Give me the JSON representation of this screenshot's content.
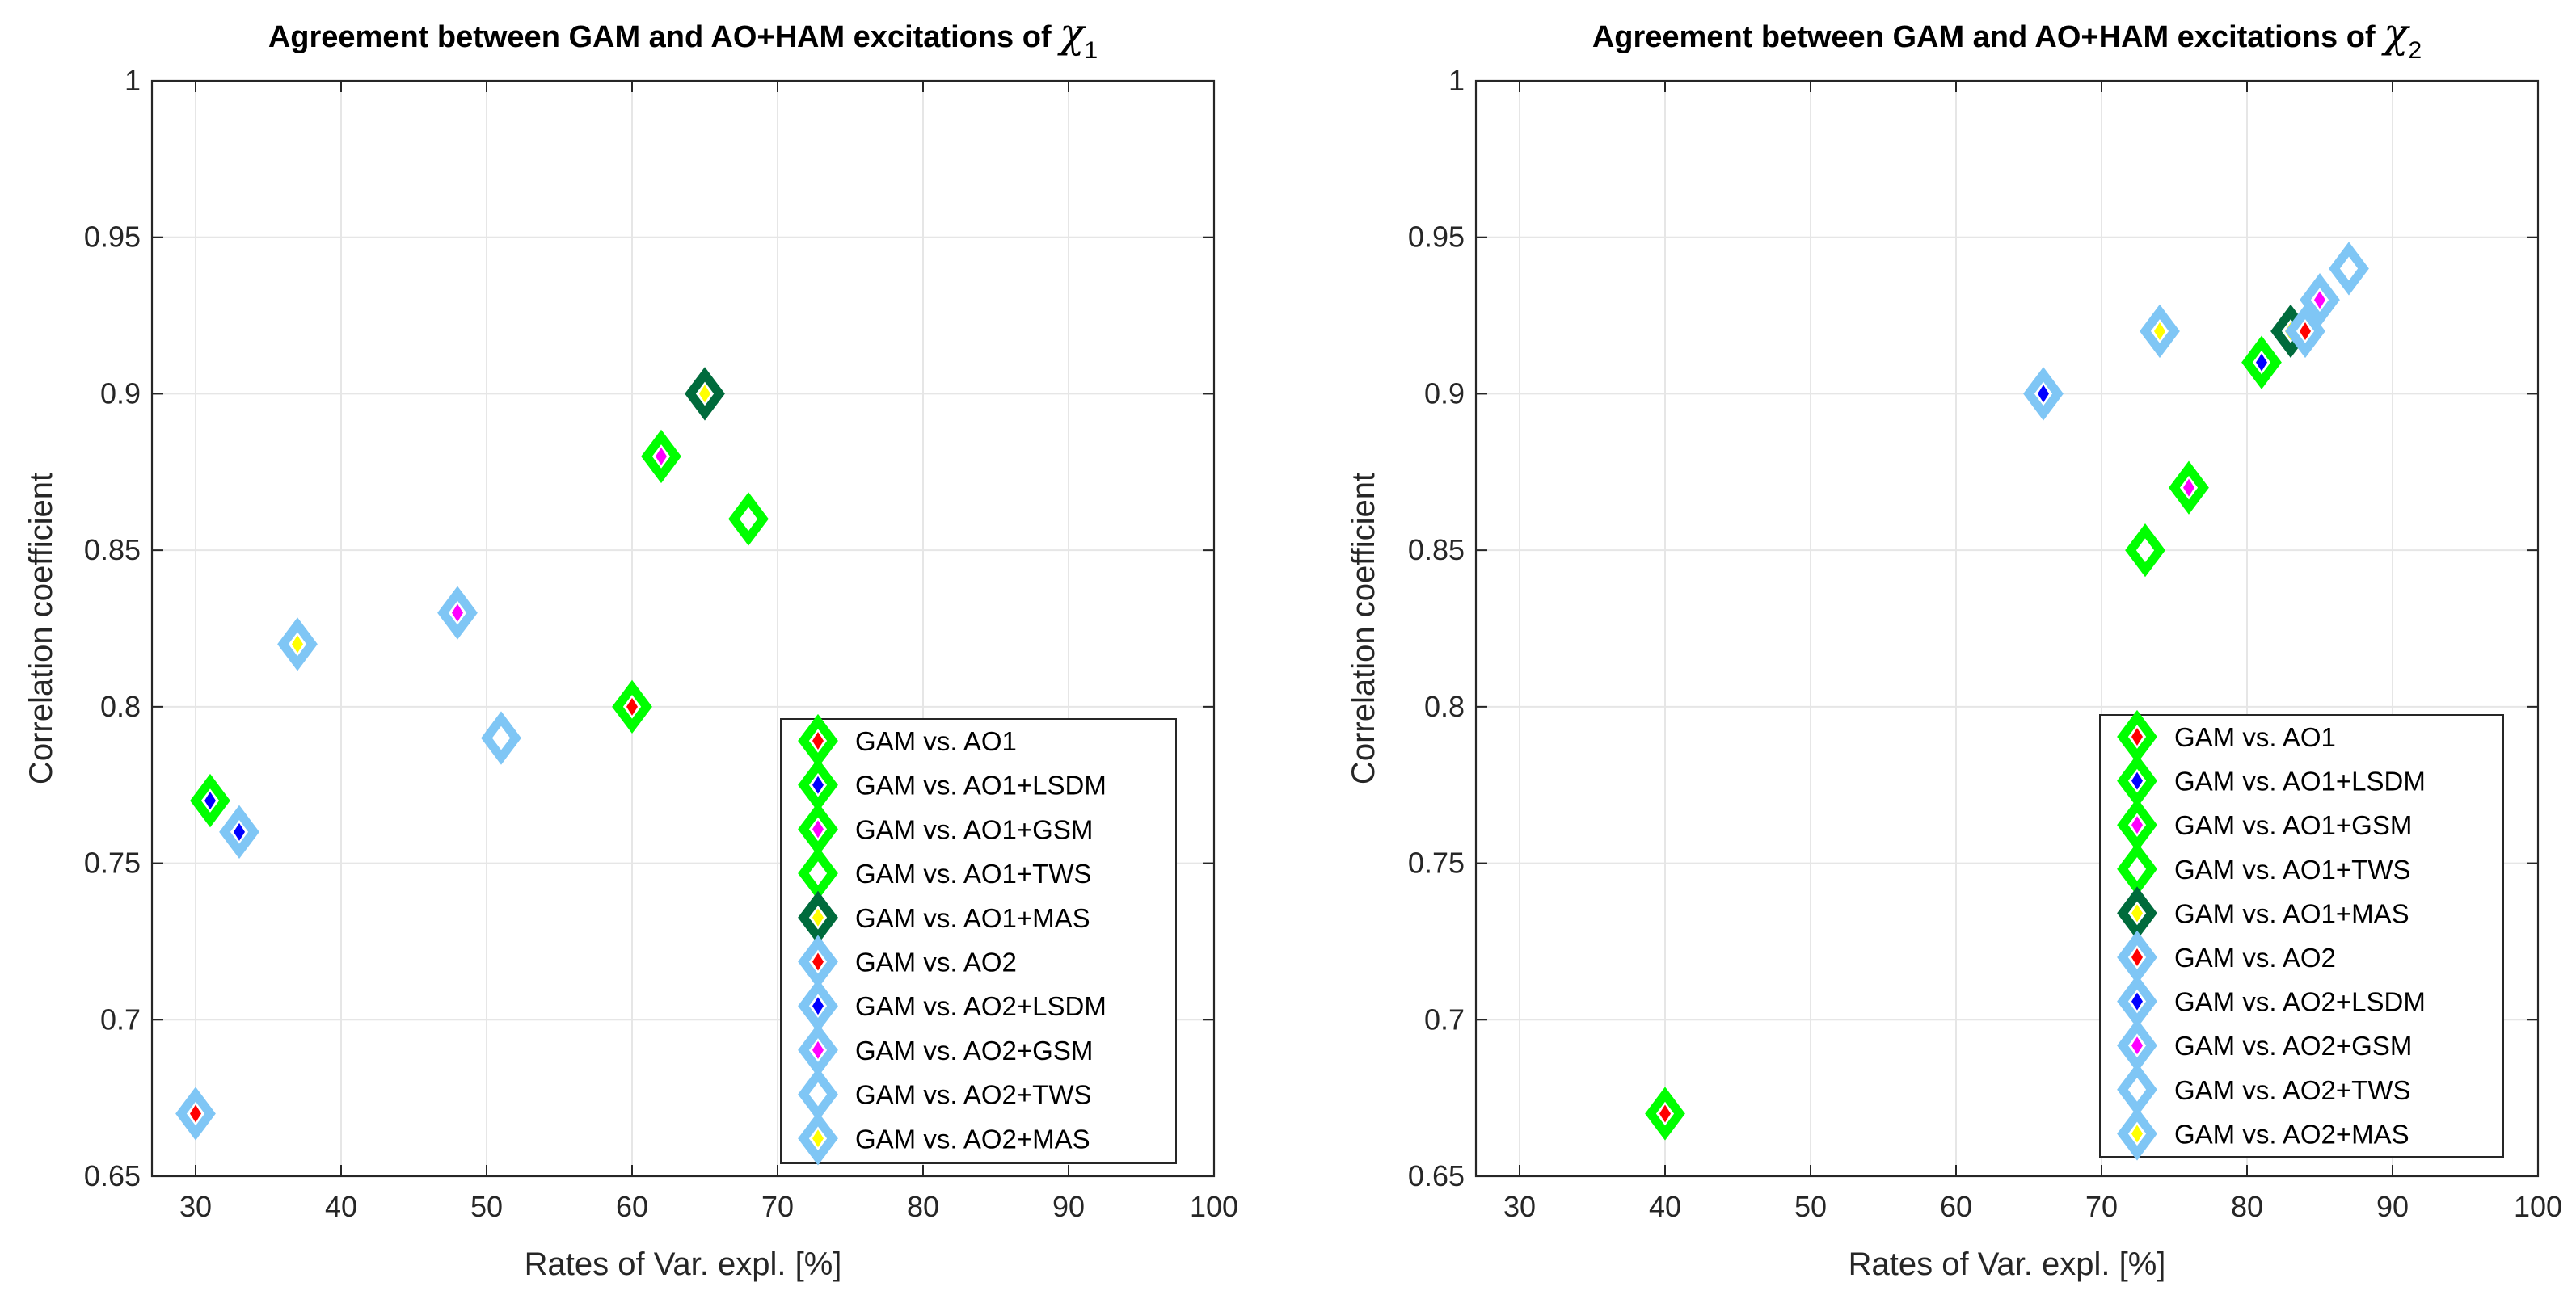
{
  "marker_styles": {
    "AO1": {
      "edge": "#00ff00",
      "center": "#ff0000"
    },
    "AO1+LSDM": {
      "edge": "#00ff00",
      "center": "#0000ff"
    },
    "AO1+GSM": {
      "edge": "#00ff00",
      "center": "#ff00ff"
    },
    "AO1+TWS": {
      "edge": "#00ff00",
      "center": "#ffffff"
    },
    "AO1+MAS": {
      "edge": "#006b3c",
      "center": "#ffff00"
    },
    "AO2": {
      "edge": "#7fc6f5",
      "center": "#ff0000"
    },
    "AO2+LSDM": {
      "edge": "#7fc6f5",
      "center": "#0000ff"
    },
    "AO2+GSM": {
      "edge": "#7fc6f5",
      "center": "#ff00ff"
    },
    "AO2+TWS": {
      "edge": "#7fc6f5",
      "center": "#ffffff"
    },
    "AO2+MAS": {
      "edge": "#7fc6f5",
      "center": "#ffff00"
    }
  },
  "chart_data": [
    {
      "type": "scatter",
      "title": "Agreement between GAM and AO+HAM excitations of ",
      "title_symbol": "χ",
      "title_subscript": "1",
      "xlabel": "Rates of Var. expl. [%]",
      "ylabel": "Correlation coefficient",
      "xlim": [
        27,
        100
      ],
      "ylim": [
        0.65,
        1
      ],
      "xticks": [
        30,
        40,
        50,
        60,
        70,
        80,
        90,
        100
      ],
      "yticks": [
        0.65,
        0.7,
        0.75,
        0.8,
        0.85,
        0.9,
        0.95,
        1
      ],
      "xtick_labels": [
        "30",
        "40",
        "50",
        "60",
        "70",
        "80",
        "90",
        "100"
      ],
      "ytick_labels": [
        "0.65",
        "0.7",
        "0.75",
        "0.8",
        "0.85",
        "0.9",
        "0.95",
        "1"
      ],
      "grid": true,
      "legend_position": "bottom-right",
      "series": [
        {
          "key": "AO1",
          "name": "GAM vs. AO1",
          "x": 60,
          "y": 0.8
        },
        {
          "key": "AO1+LSDM",
          "name": "GAM vs. AO1+LSDM",
          "x": 31,
          "y": 0.77
        },
        {
          "key": "AO1+GSM",
          "name": "GAM vs. AO1+GSM",
          "x": 62,
          "y": 0.88
        },
        {
          "key": "AO1+TWS",
          "name": "GAM vs. AO1+TWS",
          "x": 68,
          "y": 0.86
        },
        {
          "key": "AO1+MAS",
          "name": "GAM vs. AO1+MAS",
          "x": 65,
          "y": 0.9
        },
        {
          "key": "AO2",
          "name": "GAM vs. AO2",
          "x": 30,
          "y": 0.67
        },
        {
          "key": "AO2+LSDM",
          "name": "GAM vs. AO2+LSDM",
          "x": 33,
          "y": 0.76
        },
        {
          "key": "AO2+GSM",
          "name": "GAM vs. AO2+GSM",
          "x": 48,
          "y": 0.83
        },
        {
          "key": "AO2+TWS",
          "name": "GAM vs. AO2+TWS",
          "x": 51,
          "y": 0.79
        },
        {
          "key": "AO2+MAS",
          "name": "GAM vs. AO2+MAS",
          "x": 37,
          "y": 0.82
        }
      ]
    },
    {
      "type": "scatter",
      "title": "Agreement between GAM and AO+HAM excitations of ",
      "title_symbol": "χ",
      "title_subscript": "2",
      "xlabel": "Rates of Var. expl. [%]",
      "ylabel": "Correlation coefficient",
      "xlim": [
        27,
        100
      ],
      "ylim": [
        0.65,
        1
      ],
      "xticks": [
        30,
        40,
        50,
        60,
        70,
        80,
        90,
        100
      ],
      "yticks": [
        0.65,
        0.7,
        0.75,
        0.8,
        0.85,
        0.9,
        0.95,
        1
      ],
      "xtick_labels": [
        "30",
        "40",
        "50",
        "60",
        "70",
        "80",
        "90",
        "100"
      ],
      "ytick_labels": [
        "0.65",
        "0.7",
        "0.75",
        "0.8",
        "0.85",
        "0.9",
        "0.95",
        "1"
      ],
      "grid": true,
      "legend_position": "bottom-right",
      "series": [
        {
          "key": "AO1",
          "name": "GAM vs. AO1",
          "x": 40,
          "y": 0.67
        },
        {
          "key": "AO1+LSDM",
          "name": "GAM vs. AO1+LSDM",
          "x": 81,
          "y": 0.91
        },
        {
          "key": "AO1+GSM",
          "name": "GAM vs. AO1+GSM",
          "x": 76,
          "y": 0.87
        },
        {
          "key": "AO1+TWS",
          "name": "GAM vs. AO1+TWS",
          "x": 73,
          "y": 0.85
        },
        {
          "key": "AO1+MAS",
          "name": "GAM vs. AO1+MAS",
          "x": 83,
          "y": 0.92
        },
        {
          "key": "AO2",
          "name": "GAM vs. AO2",
          "x": 84,
          "y": 0.92
        },
        {
          "key": "AO2+LSDM",
          "name": "GAM vs. AO2+LSDM",
          "x": 66,
          "y": 0.9
        },
        {
          "key": "AO2+GSM",
          "name": "GAM vs. AO2+GSM",
          "x": 85,
          "y": 0.93
        },
        {
          "key": "AO2+TWS",
          "name": "GAM vs. AO2+TWS",
          "x": 87,
          "y": 0.94
        },
        {
          "key": "AO2+MAS",
          "name": "GAM vs. AO2+MAS",
          "x": 74,
          "y": 0.92
        }
      ]
    }
  ]
}
